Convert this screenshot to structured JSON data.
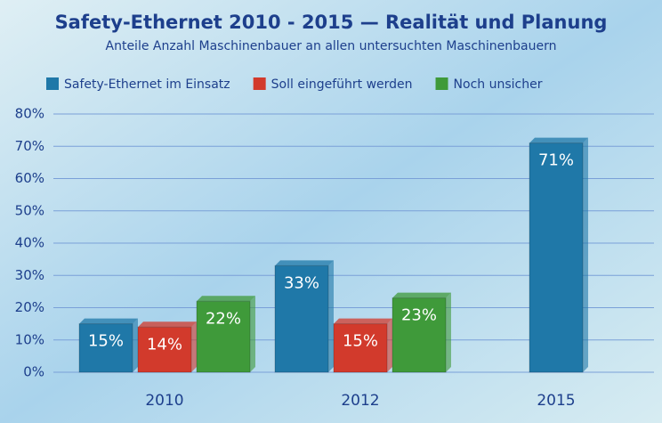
{
  "chart_data": {
    "type": "bar",
    "title": "Safety-Ethernet 2010 - 2015 — Realität und Planung",
    "subtitle": "Anteile Anzahl Maschinenbauer an allen untersuchten Maschinenbauern",
    "categories": [
      "2010",
      "2012",
      "2015"
    ],
    "series": [
      {
        "name": "Safety-Ethernet im Einsatz",
        "color": "#1f78a8",
        "values": [
          15,
          33,
          71
        ],
        "value_labels": [
          "15%",
          "33%",
          "71%"
        ]
      },
      {
        "name": "Soll eingeführt werden",
        "color": "#d23a2c",
        "values": [
          14,
          15,
          null
        ],
        "value_labels": [
          "14%",
          "15%",
          null
        ]
      },
      {
        "name": "Noch unsicher",
        "color": "#3f9a3a",
        "values": [
          22,
          23,
          null
        ],
        "value_labels": [
          "22%",
          "23%",
          null
        ]
      }
    ],
    "ylim": [
      0,
      80
    ],
    "yticks": [
      {
        "value": 0,
        "label": "0%"
      },
      {
        "value": 10,
        "label": "10%"
      },
      {
        "value": 20,
        "label": "20%"
      },
      {
        "value": 30,
        "label": "30%"
      },
      {
        "value": 40,
        "label": "40%"
      },
      {
        "value": 50,
        "label": "50%"
      },
      {
        "value": 60,
        "label": "60%"
      },
      {
        "value": 70,
        "label": "70%"
      },
      {
        "value": 80,
        "label": "80%"
      }
    ],
    "grid": true
  }
}
